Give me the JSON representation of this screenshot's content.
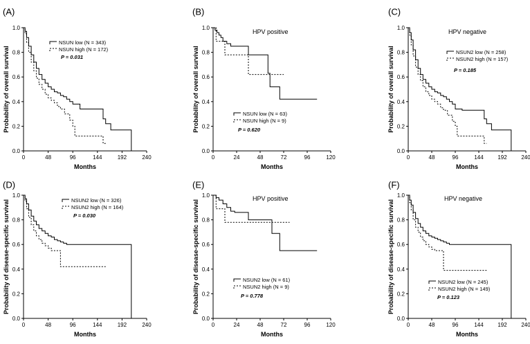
{
  "chart_data": [
    {
      "type": "line",
      "panel_label": "(A)",
      "subtitle": "",
      "xlabel": "Months",
      "ylabel": "Probability of overall survival",
      "xlim": [
        0,
        240
      ],
      "ylim": [
        0,
        1
      ],
      "xticks": [
        "0",
        "48",
        "96",
        "144",
        "192",
        "240"
      ],
      "yticks": [
        "0.0",
        "0.2",
        "0.4",
        "0.6",
        "0.8",
        "1.0"
      ],
      "legend": [
        "NSUN low  (N = 343)",
        "NSUN high (N = 172)"
      ],
      "pvalue": "P = 0.031",
      "series": [
        {
          "name": "NSUN low  (N = 343)",
          "style": "solid",
          "x": [
            0,
            3,
            6,
            10,
            15,
            20,
            25,
            30,
            36,
            42,
            48,
            54,
            60,
            66,
            72,
            78,
            84,
            90,
            96,
            110,
            130,
            150,
            155,
            160,
            170,
            210,
            210
          ],
          "y": [
            1,
            0.97,
            0.92,
            0.85,
            0.78,
            0.72,
            0.67,
            0.62,
            0.58,
            0.55,
            0.52,
            0.5,
            0.48,
            0.47,
            0.45,
            0.44,
            0.42,
            0.4,
            0.38,
            0.34,
            0.34,
            0.34,
            0.26,
            0.22,
            0.17,
            0.17,
            0.0
          ]
        },
        {
          "name": "NSUN high (N = 172)",
          "style": "dotted",
          "x": [
            0,
            3,
            6,
            10,
            15,
            20,
            25,
            30,
            36,
            42,
            48,
            54,
            60,
            66,
            72,
            80,
            90,
            96,
            100,
            110,
            120,
            130,
            150,
            155,
            160
          ],
          "y": [
            1,
            0.95,
            0.88,
            0.8,
            0.72,
            0.65,
            0.59,
            0.54,
            0.5,
            0.46,
            0.43,
            0.41,
            0.39,
            0.36,
            0.34,
            0.3,
            0.25,
            0.2,
            0.12,
            0.12,
            0.12,
            0.12,
            0.12,
            0.06,
            0.06
          ]
        }
      ]
    },
    {
      "type": "line",
      "panel_label": "(B)",
      "subtitle": "HPV positive",
      "xlabel": "Months",
      "ylabel": "Probability of overall survival",
      "xlim": [
        0,
        120
      ],
      "ylim": [
        0,
        1
      ],
      "xticks": [
        "0",
        "24",
        "48",
        "72",
        "96",
        "120"
      ],
      "yticks": [
        "0.0",
        "0.2",
        "0.4",
        "0.6",
        "0.8",
        "1.0"
      ],
      "legend": [
        "NSUN low (N = 63)",
        "NSUN high (N = 9)"
      ],
      "pvalue": "P = 0.620",
      "series": [
        {
          "name": "NSUN low (N = 63)",
          "style": "solid",
          "x": [
            0,
            2,
            4,
            6,
            8,
            10,
            14,
            18,
            22,
            36,
            56,
            58,
            64,
            68,
            106
          ],
          "y": [
            1,
            0.98,
            0.96,
            0.94,
            0.92,
            0.89,
            0.87,
            0.85,
            0.85,
            0.78,
            0.63,
            0.52,
            0.52,
            0.42,
            0.42
          ]
        },
        {
          "name": "NSUN high (N = 9)",
          "style": "dotted",
          "x": [
            0,
            3,
            12,
            36,
            54,
            72
          ],
          "y": [
            1,
            0.89,
            0.78,
            0.62,
            0.62,
            0.62
          ]
        }
      ]
    },
    {
      "type": "line",
      "panel_label": "(C)",
      "subtitle": "HPV negative",
      "xlabel": "Months",
      "ylabel": "Probability of overall survival",
      "xlim": [
        0,
        240
      ],
      "ylim": [
        0,
        1
      ],
      "xticks": [
        "0",
        "48",
        "96",
        "144",
        "192",
        "240"
      ],
      "yticks": [
        "0.0",
        "0.2",
        "0.4",
        "0.6",
        "0.8",
        "1.0"
      ],
      "legend": [
        "NSUN2 low  (N = 258)",
        "NSUN2 high (N = 157)"
      ],
      "pvalue": "P = 0.185",
      "series": [
        {
          "name": "NSUN2 low  (N = 258)",
          "style": "solid",
          "x": [
            0,
            3,
            6,
            10,
            15,
            20,
            25,
            30,
            36,
            42,
            48,
            54,
            60,
            66,
            72,
            78,
            84,
            90,
            96,
            110,
            130,
            150,
            155,
            160,
            170,
            210,
            210
          ],
          "y": [
            1,
            0.96,
            0.9,
            0.82,
            0.74,
            0.67,
            0.62,
            0.58,
            0.55,
            0.52,
            0.5,
            0.48,
            0.47,
            0.45,
            0.44,
            0.42,
            0.4,
            0.38,
            0.34,
            0.33,
            0.33,
            0.33,
            0.26,
            0.22,
            0.17,
            0.17,
            0.0
          ]
        },
        {
          "name": "NSUN2 high (N = 157)",
          "style": "dotted",
          "x": [
            0,
            3,
            6,
            10,
            15,
            20,
            25,
            30,
            36,
            42,
            48,
            54,
            60,
            66,
            72,
            80,
            90,
            96,
            100,
            110,
            120,
            130,
            150,
            155,
            160
          ],
          "y": [
            1,
            0.94,
            0.86,
            0.77,
            0.68,
            0.62,
            0.57,
            0.52,
            0.48,
            0.45,
            0.42,
            0.4,
            0.38,
            0.35,
            0.33,
            0.29,
            0.24,
            0.2,
            0.12,
            0.12,
            0.12,
            0.12,
            0.12,
            0.06,
            0.06
          ]
        }
      ]
    },
    {
      "type": "line",
      "panel_label": "(D)",
      "subtitle": "",
      "xlabel": "Months",
      "ylabel": "Probability of disease-specific survival",
      "xlim": [
        0,
        240
      ],
      "ylim": [
        0,
        1
      ],
      "xticks": [
        "0",
        "48",
        "96",
        "144",
        "192",
        "240"
      ],
      "yticks": [
        "0.0",
        "0.2",
        "0.4",
        "0.6",
        "0.8",
        "1.0"
      ],
      "legend": [
        "NSUN2 low  (N = 326)",
        "NSUN2 high (N = 164)"
      ],
      "pvalue": "P = 0.030",
      "series": [
        {
          "name": "NSUN2 low  (N = 326)",
          "style": "solid",
          "x": [
            0,
            3,
            6,
            10,
            15,
            20,
            25,
            30,
            36,
            42,
            48,
            54,
            60,
            66,
            72,
            78,
            84,
            96,
            210,
            210
          ],
          "y": [
            1,
            0.97,
            0.93,
            0.88,
            0.83,
            0.79,
            0.76,
            0.73,
            0.71,
            0.69,
            0.67,
            0.66,
            0.64,
            0.63,
            0.62,
            0.61,
            0.6,
            0.6,
            0.6,
            0.0
          ]
        },
        {
          "name": "NSUN2 high (N = 164)",
          "style": "dotted",
          "x": [
            0,
            3,
            6,
            10,
            15,
            20,
            25,
            30,
            36,
            42,
            48,
            54,
            60,
            66,
            72,
            78,
            96,
            120,
            160
          ],
          "y": [
            1,
            0.95,
            0.89,
            0.82,
            0.76,
            0.71,
            0.67,
            0.64,
            0.61,
            0.59,
            0.57,
            0.55,
            0.55,
            0.55,
            0.42,
            0.42,
            0.42,
            0.42,
            0.42
          ]
        }
      ]
    },
    {
      "type": "line",
      "panel_label": "(E)",
      "subtitle": "HPV positive",
      "xlabel": "Months",
      "ylabel": "Probability of disease-specific survival",
      "xlim": [
        0,
        120
      ],
      "ylim": [
        0,
        1
      ],
      "xticks": [
        "0",
        "24",
        "48",
        "72",
        "96",
        "120"
      ],
      "yticks": [
        "0.0",
        "0.2",
        "0.4",
        "0.6",
        "0.8",
        "1.0"
      ],
      "legend": [
        "NSUN2 low (N = 61)",
        "NSUN2 high (N = 9)"
      ],
      "pvalue": "P = 0.778",
      "series": [
        {
          "name": "NSUN2 low (N = 61)",
          "style": "solid",
          "x": [
            0,
            3,
            6,
            10,
            14,
            18,
            22,
            36,
            48,
            60,
            62,
            68,
            106
          ],
          "y": [
            1,
            0.98,
            0.96,
            0.93,
            0.9,
            0.87,
            0.86,
            0.8,
            0.8,
            0.69,
            0.69,
            0.55,
            0.55
          ]
        },
        {
          "name": "NSUN2 high (N = 9)",
          "style": "dotted",
          "x": [
            0,
            3,
            12,
            36,
            60,
            78
          ],
          "y": [
            1,
            0.89,
            0.78,
            0.78,
            0.78,
            0.78
          ]
        }
      ]
    },
    {
      "type": "line",
      "panel_label": "(F)",
      "subtitle": "HPV negative",
      "xlabel": "Months",
      "ylabel": "Probability of disease-specific survival",
      "xlim": [
        0,
        240
      ],
      "ylim": [
        0,
        1
      ],
      "xticks": [
        "0",
        "48",
        "96",
        "144",
        "192",
        "240"
      ],
      "yticks": [
        "0.0",
        "0.2",
        "0.4",
        "0.6",
        "0.8",
        "1.0"
      ],
      "legend": [
        "NSUN2 low  (N = 245)",
        "NSUN2 high (N = 149)"
      ],
      "pvalue": "P = 0.123",
      "series": [
        {
          "name": "NSUN2 low  (N = 245)",
          "style": "solid",
          "x": [
            0,
            3,
            6,
            10,
            15,
            20,
            25,
            30,
            36,
            42,
            48,
            54,
            60,
            66,
            72,
            78,
            84,
            96,
            210,
            210
          ],
          "y": [
            1,
            0.96,
            0.92,
            0.86,
            0.81,
            0.77,
            0.74,
            0.71,
            0.69,
            0.67,
            0.66,
            0.65,
            0.64,
            0.63,
            0.62,
            0.61,
            0.6,
            0.6,
            0.6,
            0.0
          ]
        },
        {
          "name": "NSUN2 high (N = 149)",
          "style": "dotted",
          "x": [
            0,
            3,
            6,
            10,
            15,
            20,
            25,
            30,
            36,
            42,
            48,
            54,
            60,
            66,
            72,
            78,
            96,
            120,
            160
          ],
          "y": [
            1,
            0.94,
            0.88,
            0.8,
            0.74,
            0.7,
            0.66,
            0.63,
            0.6,
            0.58,
            0.56,
            0.55,
            0.55,
            0.55,
            0.39,
            0.39,
            0.39,
            0.39,
            0.39
          ]
        }
      ]
    }
  ]
}
